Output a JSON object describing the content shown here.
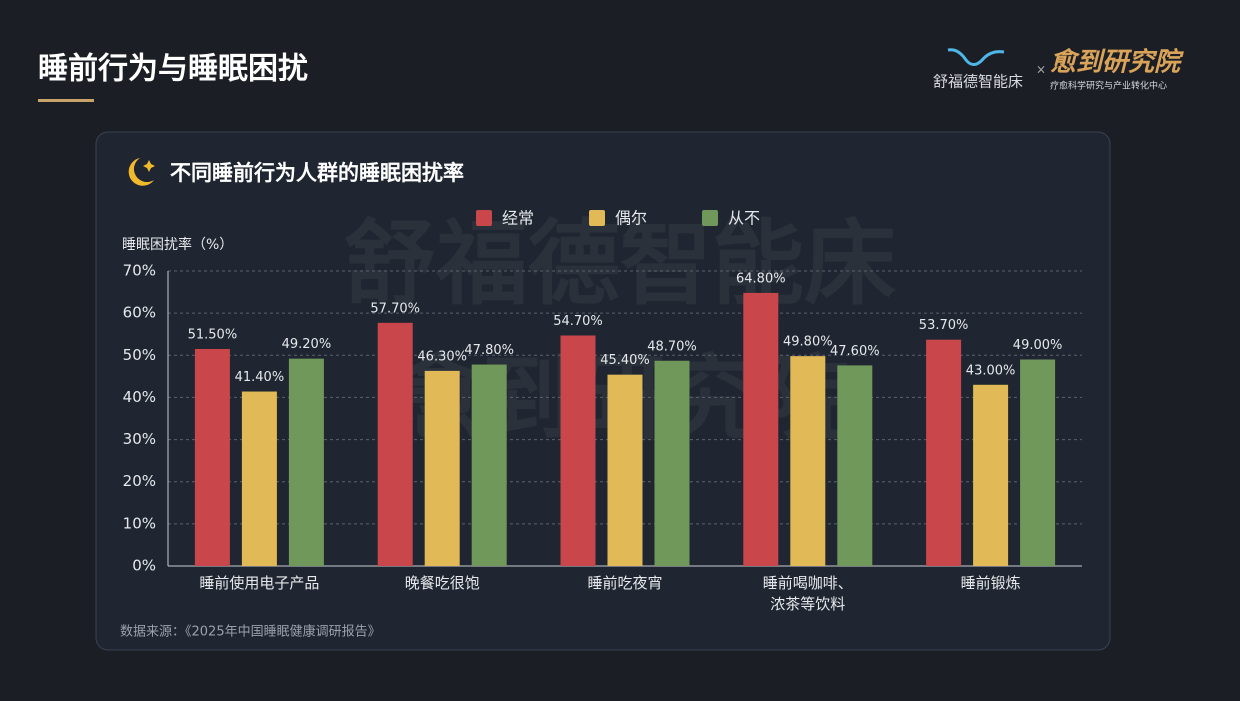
{
  "header": {
    "title": "睡前行为与睡眠困扰",
    "brand": "舒福德智能床",
    "separator": "×",
    "partner": "愈到研究院",
    "partner_subtitle": "疗愈科学研究与产业转化中心"
  },
  "watermark": [
    "舒福德智能床",
    "愈到研究院"
  ],
  "chart_data": {
    "type": "bar",
    "title": "不同睡前行为人群的睡眠困扰率",
    "y_label": "睡眠困扰率（%）",
    "categories": [
      "睡前使用电子产品",
      "晚餐吃很饱",
      "睡前吃夜宵",
      "睡前喝咖啡、\n浓茶等饮料",
      "睡前锻炼"
    ],
    "series": [
      {
        "name": "经常",
        "color": "#c9474b",
        "values": [
          51.5,
          57.7,
          54.7,
          64.8,
          53.7
        ],
        "value_labels": [
          "51.50%",
          "57.70%",
          "54.70%",
          "64.80%",
          "53.70%"
        ]
      },
      {
        "name": "偶尔",
        "color": "#e2b957",
        "values": [
          41.4,
          46.3,
          45.4,
          49.8,
          43.0
        ],
        "value_labels": [
          "41.40%",
          "46.30%",
          "45.40%",
          "49.80%",
          "43.00%"
        ]
      },
      {
        "name": "从不",
        "color": "#6f985a",
        "values": [
          49.2,
          47.8,
          48.7,
          47.6,
          49.0
        ],
        "value_labels": [
          "49.20%",
          "47.80%",
          "48.70%",
          "47.60%",
          "49.00%"
        ]
      }
    ],
    "ylim": [
      0,
      70
    ],
    "yticks": [
      {
        "value": 0,
        "label": "0%"
      },
      {
        "value": 10,
        "label": "10%"
      },
      {
        "value": 20,
        "label": "20%"
      },
      {
        "value": 30,
        "label": "30%"
      },
      {
        "value": 40,
        "label": "40%"
      },
      {
        "value": 50,
        "label": "50%"
      },
      {
        "value": 60,
        "label": "60%"
      },
      {
        "value": 70,
        "label": "70%"
      }
    ],
    "grid": true,
    "legend": "top",
    "source": "数据来源：《2025年中国睡眠健康调研报告》"
  }
}
